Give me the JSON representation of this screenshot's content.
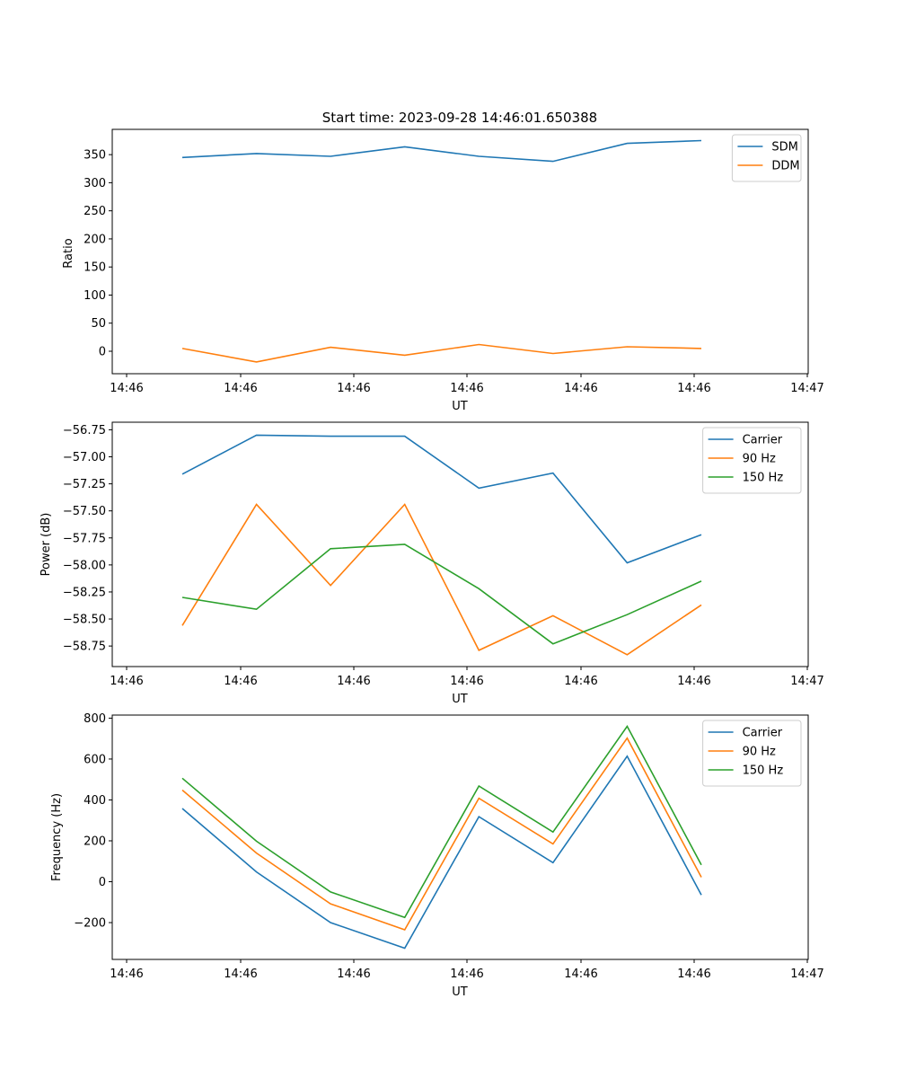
{
  "figure_title": "Start time: 2023-09-28 14:46:01.650388",
  "colors": {
    "c0": "#1f77b4",
    "c1": "#ff7f0e",
    "c2": "#2ca02c"
  },
  "chart_data": [
    {
      "type": "line",
      "title": "Start time: 2023-09-28 14:46:01.650388",
      "xlabel": "UT",
      "ylabel": "Ratio",
      "x_tick_labels": [
        "14:46",
        "14:46",
        "14:46",
        "14:46",
        "14:46",
        "14:46",
        "14:46",
        "14:47"
      ],
      "y_ticks": [
        0,
        50,
        100,
        150,
        200,
        250,
        300,
        350
      ],
      "y_tick_labels": [
        "0",
        "50",
        "100",
        "150",
        "200",
        "250",
        "300",
        "350"
      ],
      "ylim": [
        -40,
        395
      ],
      "x": [
        1,
        2,
        3,
        4,
        5,
        6,
        7,
        8
      ],
      "legend": "upper right",
      "series": [
        {
          "name": "SDM",
          "color": "#1f77b4",
          "values": [
            345,
            352,
            347,
            364,
            347,
            338,
            370,
            375
          ]
        },
        {
          "name": "DDM",
          "color": "#ff7f0e",
          "values": [
            5,
            -19,
            7,
            -7,
            12,
            -4,
            8,
            5
          ]
        }
      ]
    },
    {
      "type": "line",
      "title": "",
      "xlabel": "UT",
      "ylabel": "Power (dB)",
      "x_tick_labels": [
        "14:46",
        "14:46",
        "14:46",
        "14:46",
        "14:46",
        "14:46",
        "14:46",
        "14:47"
      ],
      "y_ticks": [
        -56.75,
        -57.0,
        -57.25,
        -57.5,
        -57.75,
        -58.0,
        -58.25,
        -58.5,
        -58.75
      ],
      "y_tick_labels": [
        "−56.75",
        "−57.00",
        "−57.25",
        "−57.50",
        "−57.75",
        "−58.00",
        "−58.25",
        "−58.50",
        "−58.75"
      ],
      "ylim": [
        -58.94,
        -56.68
      ],
      "x": [
        1,
        2,
        3,
        4,
        5,
        6,
        7,
        8
      ],
      "legend": "upper right",
      "series": [
        {
          "name": "Carrier",
          "color": "#1f77b4",
          "values": [
            -57.16,
            -56.8,
            -56.81,
            -56.81,
            -57.29,
            -57.15,
            -57.98,
            -57.72
          ]
        },
        {
          "name": "90 Hz",
          "color": "#ff7f0e",
          "values": [
            -58.56,
            -57.44,
            -58.19,
            -57.44,
            -58.79,
            -58.47,
            -58.83,
            -58.37
          ]
        },
        {
          "name": "150 Hz",
          "color": "#2ca02c",
          "values": [
            -58.3,
            -58.41,
            -57.85,
            -57.81,
            -58.22,
            -58.73,
            -58.46,
            -58.15
          ]
        }
      ]
    },
    {
      "type": "line",
      "title": "",
      "xlabel": "UT",
      "ylabel": "Frequency (Hz)",
      "x_tick_labels": [
        "14:46",
        "14:46",
        "14:46",
        "14:46",
        "14:46",
        "14:46",
        "14:46",
        "14:47"
      ],
      "y_ticks": [
        -200,
        0,
        200,
        400,
        600,
        800
      ],
      "y_tick_labels": [
        "−200",
        "0",
        "200",
        "400",
        "600",
        "800"
      ],
      "ylim": [
        -380,
        815
      ],
      "x": [
        1,
        2,
        3,
        4,
        5,
        6,
        7,
        8
      ],
      "legend": "upper right",
      "series": [
        {
          "name": "Carrier",
          "color": "#1f77b4",
          "values": [
            358,
            48,
            -200,
            -325,
            318,
            93,
            614,
            -65
          ]
        },
        {
          "name": "90 Hz",
          "color": "#ff7f0e",
          "values": [
            448,
            140,
            -108,
            -235,
            408,
            185,
            702,
            22
          ]
        },
        {
          "name": "150 Hz",
          "color": "#2ca02c",
          "values": [
            506,
            198,
            -50,
            -175,
            468,
            243,
            760,
            82
          ]
        }
      ]
    }
  ]
}
